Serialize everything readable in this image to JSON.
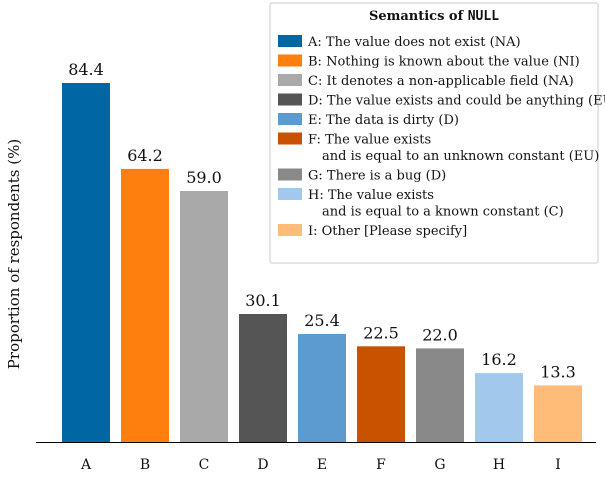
{
  "chart_data": {
    "type": "bar",
    "categories": [
      "A",
      "B",
      "C",
      "D",
      "E",
      "F",
      "G",
      "H",
      "I"
    ],
    "values": [
      84.4,
      64.2,
      59.0,
      30.1,
      25.4,
      22.5,
      22.0,
      16.2,
      13.3
    ],
    "value_labels": [
      "84.4",
      "64.2",
      "59.0",
      "30.1",
      "25.4",
      "22.5",
      "22.0",
      "16.2",
      "13.3"
    ],
    "colors": [
      "#0066a4",
      "#ff7f0e",
      "#a9a9a9",
      "#555555",
      "#5b9bd0",
      "#c85200",
      "#898989",
      "#a2c8ec",
      "#ffbc79"
    ],
    "ylabel": "Proportion of respondents (%)",
    "xlabel": "",
    "ylim": [
      0,
      100
    ],
    "grid": false,
    "legend": {
      "title_prefix": "Semantics of ",
      "title_code": "NULL",
      "placement": "top-right",
      "entries": [
        {
          "lines": [
            "A: The value does not exist (NA)"
          ]
        },
        {
          "lines": [
            "B: Nothing is known about the value (NI)"
          ]
        },
        {
          "lines": [
            "C: It denotes a non-applicable field (NA)"
          ]
        },
        {
          "lines": [
            "D: The value exists and could be anything (EU)"
          ]
        },
        {
          "lines": [
            "E: The data is dirty (D)"
          ]
        },
        {
          "lines": [
            "F: The value exists",
            "and is equal to an unknown constant (EU)"
          ]
        },
        {
          "lines": [
            "G: There is a bug (D)"
          ]
        },
        {
          "lines": [
            "H: The value exists",
            "and is equal to a known constant (C)"
          ]
        },
        {
          "lines": [
            "I: Other [Please specify]"
          ]
        }
      ]
    }
  }
}
